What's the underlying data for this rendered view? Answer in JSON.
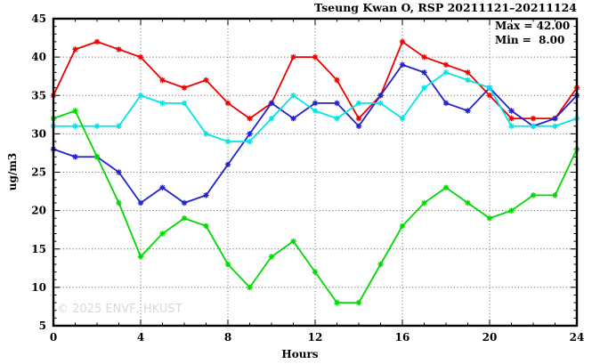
{
  "chart_data": {
    "type": "line",
    "title": "Tseung Kwan O, RSP 20211121–20211124",
    "xlabel": "Hours",
    "ylabel": "ug/m3",
    "xlim": [
      0,
      24
    ],
    "ylim": [
      5,
      45
    ],
    "x_major_ticks": [
      0,
      4,
      8,
      12,
      16,
      20,
      24
    ],
    "x_minor_step": 1,
    "y_major_ticks": [
      5,
      10,
      15,
      20,
      25,
      30,
      35,
      40,
      45
    ],
    "y_minor_step": 1,
    "grid": true,
    "legend_position": "none",
    "annotations": {
      "max_label": "Max = 42.00",
      "min_label": "Min =  8.00"
    },
    "watermark": "© 2025 ENVF, HKUST",
    "x": [
      0,
      1,
      2,
      3,
      4,
      5,
      6,
      7,
      8,
      9,
      10,
      11,
      12,
      13,
      14,
      15,
      16,
      17,
      18,
      19,
      20,
      21,
      22,
      23,
      24
    ],
    "series": [
      {
        "name": "red-series",
        "color": "#ee0000",
        "values": [
          35,
          41,
          42,
          41,
          40,
          37,
          36,
          37,
          34,
          32,
          34,
          40,
          40,
          37,
          32,
          35,
          42,
          40,
          39,
          38,
          35,
          32,
          32,
          32,
          36
        ]
      },
      {
        "name": "blue-series",
        "color": "#2222cc",
        "values": [
          28,
          27,
          27,
          25,
          21,
          23,
          21,
          22,
          26,
          30,
          34,
          32,
          34,
          34,
          31,
          35,
          39,
          38,
          34,
          33,
          36,
          33,
          31,
          32,
          35
        ]
      },
      {
        "name": "cyan-series",
        "color": "#00e5e5",
        "values": [
          31,
          31,
          31,
          31,
          35,
          34,
          34,
          30,
          29,
          29,
          32,
          35,
          33,
          32,
          34,
          34,
          32,
          36,
          38,
          37,
          36,
          31,
          31,
          31,
          32
        ]
      },
      {
        "name": "green-series",
        "color": "#00d900",
        "values": [
          32,
          33,
          27,
          21,
          14,
          17,
          19,
          18,
          13,
          10,
          14,
          16,
          12,
          8,
          8,
          13,
          18,
          21,
          23,
          21,
          19,
          20,
          22,
          22,
          28
        ]
      }
    ]
  }
}
